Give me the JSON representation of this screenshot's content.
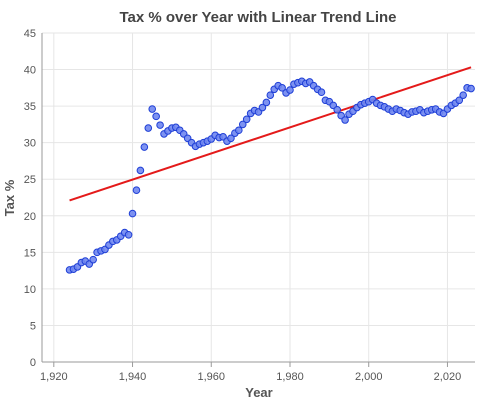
{
  "chart_data": {
    "type": "scatter",
    "title": "Tax % over Year with Linear Trend Line",
    "xlabel": "Year",
    "ylabel": "Tax %",
    "xlim": [
      1917,
      2027
    ],
    "ylim": [
      0,
      45
    ],
    "x_ticks": [
      1920,
      1940,
      1960,
      1980,
      2000,
      2020
    ],
    "x_tick_labels": [
      "1,920",
      "1,940",
      "1,960",
      "1,980",
      "2,000",
      "2,020"
    ],
    "y_ticks": [
      0,
      5,
      10,
      15,
      20,
      25,
      30,
      35,
      40,
      45
    ],
    "y_tick_labels": [
      "0",
      "5",
      "10",
      "15",
      "20",
      "25",
      "30",
      "35",
      "40",
      "45"
    ],
    "grid": true,
    "colors": {
      "points_fill": "#6f86f0",
      "points_stroke": "#1f3fd6",
      "trend": "#e41a1a",
      "grid": "#e6e6e6",
      "axis": "#9a9a9a",
      "text": "#555555",
      "title": "#444444"
    },
    "series": [
      {
        "x": [
          1924,
          1925,
          1926,
          1927,
          1928,
          1929,
          1930,
          1931,
          1932,
          1933,
          1934,
          1935,
          1936,
          1937,
          1938,
          1939,
          1940,
          1941,
          1942,
          1943,
          1944,
          1945,
          1946,
          1947,
          1948,
          1949,
          1950,
          1951,
          1952,
          1953,
          1954,
          1955,
          1956,
          1957,
          1958,
          1959,
          1960,
          1961,
          1962,
          1963,
          1964,
          1965,
          1966,
          1967,
          1968,
          1969,
          1970,
          1971,
          1972,
          1973,
          1974,
          1975,
          1976,
          1977,
          1978,
          1979,
          1980,
          1981,
          1982,
          1983,
          1984,
          1985,
          1986,
          1987,
          1988,
          1989,
          1990,
          1991,
          1992,
          1993,
          1994,
          1995,
          1996,
          1997,
          1998,
          1999,
          2000,
          2001,
          2002,
          2003,
          2004,
          2005,
          2006,
          2007,
          2008,
          2009,
          2010,
          2011,
          2012,
          2013,
          2014,
          2015,
          2016,
          2017,
          2018,
          2019,
          2020,
          2021,
          2022,
          2023,
          2024,
          2025,
          2026
        ],
        "y": [
          12.6,
          12.7,
          13.0,
          13.6,
          13.8,
          13.4,
          14.0,
          15.0,
          15.2,
          15.4,
          16.0,
          16.5,
          16.7,
          17.2,
          17.7,
          17.4,
          20.3,
          23.5,
          26.2,
          29.4,
          32.0,
          34.6,
          33.6,
          32.4,
          31.2,
          31.6,
          32.0,
          32.1,
          31.7,
          31.2,
          30.6,
          30.0,
          29.5,
          29.8,
          30.0,
          30.2,
          30.5,
          31.0,
          30.7,
          30.8,
          30.2,
          30.6,
          31.3,
          31.7,
          32.5,
          33.2,
          34.0,
          34.4,
          34.2,
          34.8,
          35.5,
          36.5,
          37.3,
          37.8,
          37.5,
          36.8,
          37.2,
          38.0,
          38.2,
          38.4,
          38.1,
          38.3,
          37.8,
          37.3,
          36.9,
          35.8,
          35.6,
          35.1,
          34.5,
          33.7,
          33.1,
          33.9,
          34.3,
          34.8,
          35.2,
          35.4,
          35.6,
          35.9,
          35.4,
          35.1,
          34.9,
          34.6,
          34.3,
          34.6,
          34.4,
          34.1,
          33.9,
          34.2,
          34.3,
          34.5,
          34.1,
          34.3,
          34.5,
          34.6,
          34.2,
          34.0,
          34.6,
          35.1,
          35.4,
          35.8,
          36.5,
          37.5,
          37.4
        ]
      }
    ],
    "trend_line": {
      "x": [
        1924,
        2026
      ],
      "y": [
        22.1,
        40.3
      ]
    }
  }
}
